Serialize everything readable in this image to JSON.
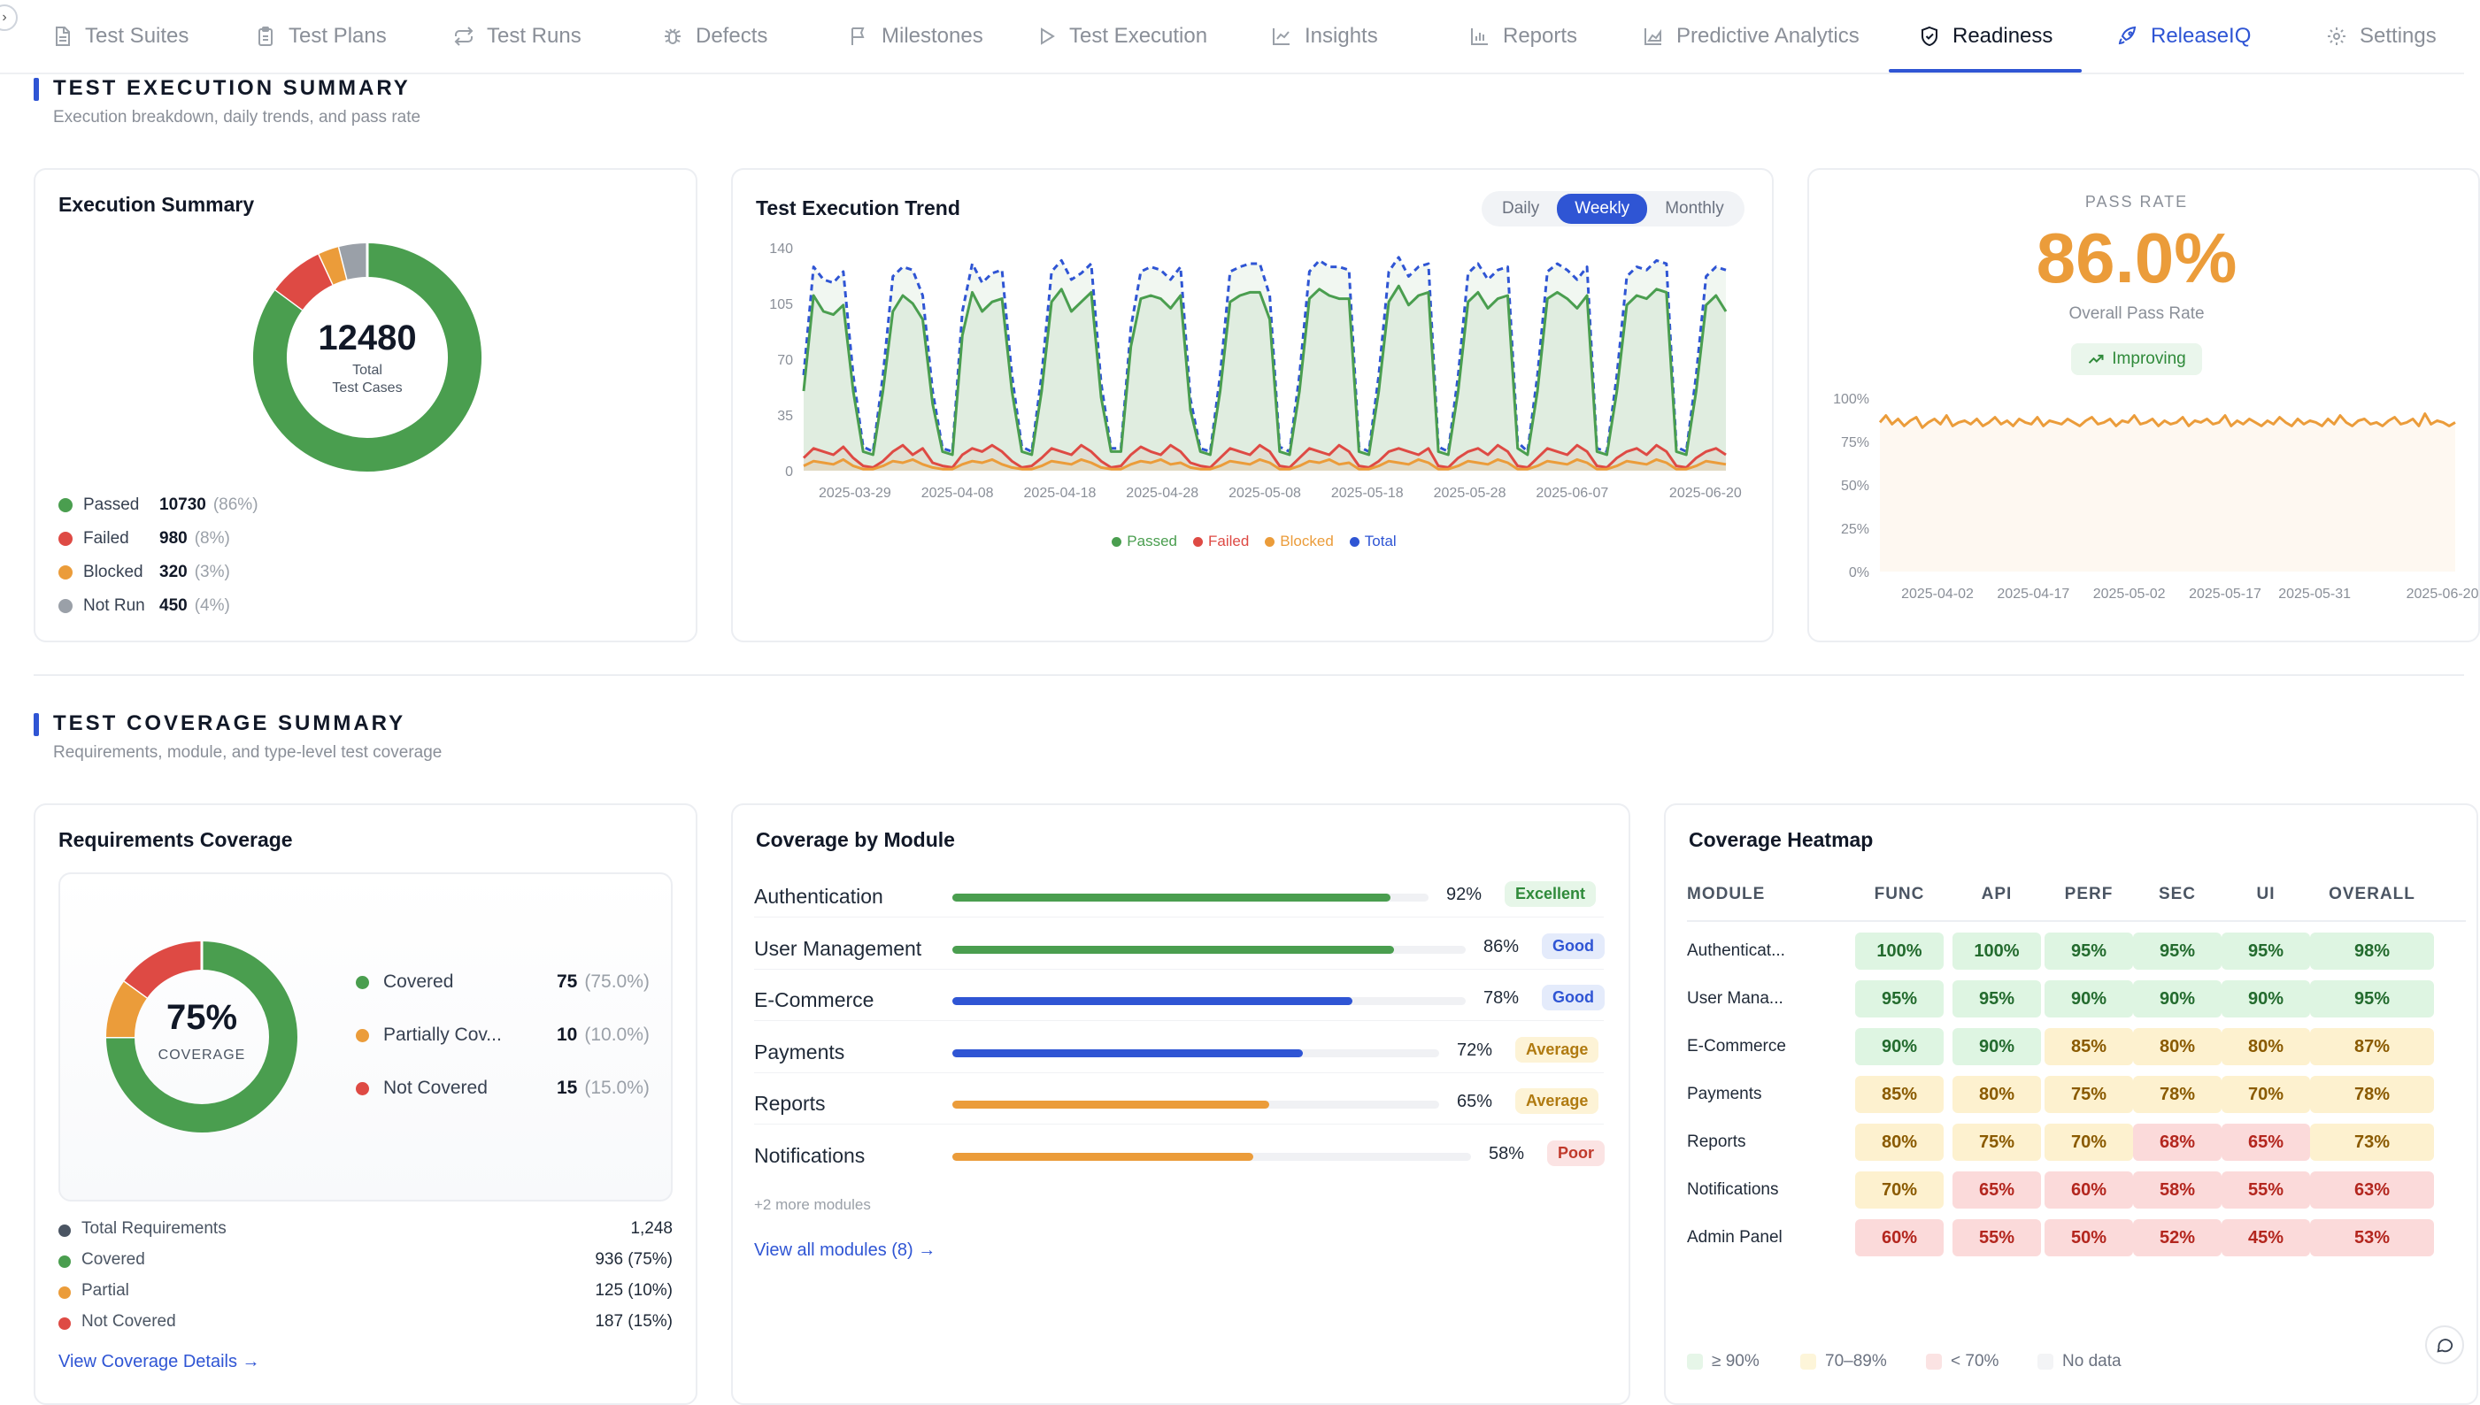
{
  "nav": {
    "toggle": "›",
    "tabs": [
      {
        "label": "Test Suites",
        "icon": "file-icon"
      },
      {
        "label": "Test Plans",
        "icon": "clipboard-icon"
      },
      {
        "label": "Test Runs",
        "icon": "repeat-icon"
      },
      {
        "label": "Defects",
        "icon": "bug-icon"
      },
      {
        "label": "Milestones",
        "icon": "flag-icon"
      },
      {
        "label": "Test Execution",
        "icon": "play-icon"
      },
      {
        "label": "Insights",
        "icon": "line-chart-icon"
      },
      {
        "label": "Reports",
        "icon": "bar-chart-icon"
      },
      {
        "label": "Predictive Analytics",
        "icon": "area-chart-icon"
      },
      {
        "label": "Readiness",
        "icon": "shield-check-icon"
      },
      {
        "label": "ReleaseIQ",
        "icon": "rocket-icon"
      },
      {
        "label": "Settings",
        "icon": "gear-icon"
      }
    ],
    "active": "Readiness"
  },
  "execution_section": {
    "title": "TEST EXECUTION SUMMARY",
    "subtitle": "Execution breakdown, daily trends, and pass rate"
  },
  "execution_summary": {
    "title": "Execution Summary",
    "total": "12480",
    "total_label_1": "Total",
    "total_label_2": "Test Cases",
    "items": [
      {
        "label": "Passed",
        "value": "10730",
        "pct": "(86%)",
        "color": "#4a9e4f",
        "share": 86
      },
      {
        "label": "Failed",
        "value": "980",
        "pct": "(8%)",
        "color": "#de4a44",
        "share": 8
      },
      {
        "label": "Blocked",
        "value": "320",
        "pct": "(3%)",
        "color": "#eb9c3a",
        "share": 3
      },
      {
        "label": "Not Run",
        "value": "450",
        "pct": "(4%)",
        "color": "#9aa0a8",
        "share": 4
      }
    ]
  },
  "trend": {
    "title": "Test Execution Trend",
    "periods": [
      "Daily",
      "Weekly",
      "Monthly"
    ],
    "selected": "Weekly",
    "legend": [
      {
        "label": "Passed",
        "color": "#4a9e4f"
      },
      {
        "label": "Failed",
        "color": "#de4a44"
      },
      {
        "label": "Blocked",
        "color": "#eb9c3a"
      },
      {
        "label": "Total",
        "color": "#2f55d4"
      }
    ]
  },
  "pass_rate": {
    "label": "PASS RATE",
    "value": "86.0%",
    "sub": "Overall Pass Rate",
    "trend": "Improving"
  },
  "coverage_section": {
    "title": "TEST COVERAGE SUMMARY",
    "subtitle": "Requirements, module, and type-level test coverage"
  },
  "requirements": {
    "title": "Requirements Coverage",
    "center_value": "75%",
    "center_label": "COVERAGE",
    "items": [
      {
        "label": "Covered",
        "value": "75",
        "pct": "(75.0%)",
        "color": "#4a9e4f",
        "share": 75
      },
      {
        "label": "Partially Cov...",
        "value": "10",
        "pct": "(10.0%)",
        "color": "#eb9c3a",
        "share": 10
      },
      {
        "label": "Not Covered",
        "value": "15",
        "pct": "(15.0%)",
        "color": "#de4a44",
        "share": 15
      }
    ],
    "stats": [
      {
        "label": "Total Requirements",
        "value": "1,248",
        "color": "#4b5563"
      },
      {
        "label": "Covered",
        "value": "936 (75%)",
        "color": "#4a9e4f"
      },
      {
        "label": "Partial",
        "value": "125 (10%)",
        "color": "#eb9c3a"
      },
      {
        "label": "Not Covered",
        "value": "187 (15%)",
        "color": "#de4a44"
      }
    ],
    "link": "View Coverage Details →"
  },
  "modules": {
    "title": "Coverage by Module",
    "rows": [
      {
        "name": "Authentication",
        "pct": "92%",
        "value": 92,
        "badge": "Excellent",
        "color": "#4a9e4f",
        "badge_bg": "#e6f6e8",
        "badge_fg": "#2f8a3a"
      },
      {
        "name": "User Management",
        "pct": "86%",
        "value": 86,
        "badge": "Good",
        "color": "#4a9e4f",
        "badge_bg": "#e4ebfb",
        "badge_fg": "#2f55d4"
      },
      {
        "name": "E-Commerce",
        "pct": "78%",
        "value": 78,
        "badge": "Good",
        "color": "#2f55d4",
        "badge_bg": "#e4ebfb",
        "badge_fg": "#2f55d4"
      },
      {
        "name": "Payments",
        "pct": "72%",
        "value": 72,
        "badge": "Average",
        "color": "#2f55d4",
        "badge_bg": "#fdf3d6",
        "badge_fg": "#b07a10"
      },
      {
        "name": "Reports",
        "pct": "65%",
        "value": 65,
        "badge": "Average",
        "color": "#eb9c3a",
        "badge_bg": "#fdf3d6",
        "badge_fg": "#b07a10"
      },
      {
        "name": "Notifications",
        "pct": "58%",
        "value": 58,
        "badge": "Poor",
        "color": "#eb9c3a",
        "badge_bg": "#fbe3e3",
        "badge_fg": "#c0392b"
      }
    ],
    "more": "+2 more modules",
    "link": "View all modules (8) →"
  },
  "heatmap": {
    "title": "Coverage Heatmap",
    "columns": [
      "MODULE",
      "FUNC",
      "API",
      "PERF",
      "SEC",
      "UI",
      "OVERALL"
    ],
    "rows": [
      {
        "module": "Authenticat...",
        "values": [
          "100%",
          "100%",
          "95%",
          "95%",
          "95%",
          "98%"
        ]
      },
      {
        "module": "User Mana...",
        "values": [
          "95%",
          "95%",
          "90%",
          "90%",
          "90%",
          "95%"
        ]
      },
      {
        "module": "E-Commerce",
        "values": [
          "90%",
          "90%",
          "85%",
          "80%",
          "80%",
          "87%"
        ]
      },
      {
        "module": "Payments",
        "values": [
          "85%",
          "80%",
          "75%",
          "78%",
          "70%",
          "78%"
        ]
      },
      {
        "module": "Reports",
        "values": [
          "80%",
          "75%",
          "70%",
          "68%",
          "65%",
          "73%"
        ]
      },
      {
        "module": "Notifications",
        "values": [
          "70%",
          "65%",
          "60%",
          "58%",
          "55%",
          "63%"
        ]
      },
      {
        "module": "Admin Panel",
        "values": [
          "60%",
          "55%",
          "50%",
          "52%",
          "45%",
          "53%"
        ]
      }
    ],
    "legend": [
      {
        "label": "≥ 90%",
        "color": "#e6f6e8"
      },
      {
        "label": "70–89%",
        "color": "#fdf5d9"
      },
      {
        "label": "< 70%",
        "color": "#fbe3e3"
      },
      {
        "label": "No data",
        "color": "#f3f4f6"
      }
    ]
  },
  "chart_data": [
    {
      "type": "line",
      "title": "Test Execution Trend",
      "x_ticks": [
        "2025-03-29",
        "2025-04-08",
        "2025-04-18",
        "2025-04-28",
        "2025-05-08",
        "2025-05-18",
        "2025-05-28",
        "2025-06-07",
        "2025-06-20"
      ],
      "y_ticks": [
        "0",
        "35",
        "70",
        "105",
        "140"
      ],
      "ylim": [
        0,
        140
      ],
      "x_range": [
        "2025-03-24",
        "2025-06-22"
      ],
      "series": [
        {
          "name": "Total",
          "values": [
            60,
            128,
            120,
            118,
            125,
            60,
            15,
            12,
            60,
            122,
            128,
            126,
            110,
            50,
            14,
            12,
            100,
            130,
            118,
            124,
            126,
            60,
            15,
            12,
            60,
            125,
            132,
            120,
            124,
            130,
            55,
            14,
            14,
            90,
            125,
            128,
            126,
            120,
            128,
            45,
            14,
            12,
            60,
            125,
            128,
            130,
            130,
            110,
            15,
            12,
            60,
            125,
            132,
            128,
            128,
            126,
            15,
            12,
            60,
            125,
            134,
            122,
            128,
            130,
            15,
            12,
            60,
            124,
            130,
            120,
            126,
            128,
            18,
            12,
            60,
            125,
            130,
            126,
            120,
            128,
            14,
            12,
            60,
            122,
            128,
            126,
            132,
            130,
            15,
            12,
            60,
            122,
            128,
            126
          ]
        },
        {
          "name": "Passed",
          "values": [
            50,
            110,
            100,
            98,
            104,
            50,
            12,
            10,
            50,
            100,
            110,
            105,
            95,
            42,
            12,
            10,
            85,
            112,
            100,
            106,
            108,
            50,
            12,
            10,
            50,
            106,
            114,
            100,
            106,
            112,
            46,
            12,
            12,
            78,
            108,
            110,
            108,
            102,
            110,
            38,
            12,
            10,
            50,
            106,
            110,
            112,
            112,
            95,
            12,
            10,
            50,
            108,
            114,
            110,
            108,
            108,
            12,
            10,
            50,
            106,
            116,
            104,
            110,
            112,
            12,
            10,
            50,
            106,
            112,
            102,
            108,
            110,
            14,
            10,
            50,
            108,
            112,
            108,
            102,
            110,
            12,
            10,
            50,
            104,
            110,
            108,
            114,
            112,
            12,
            10,
            50,
            104,
            110,
            100
          ]
        },
        {
          "name": "Failed",
          "values": [
            8,
            14,
            12,
            10,
            15,
            8,
            3,
            2,
            6,
            12,
            16,
            10,
            14,
            5,
            3,
            2,
            10,
            14,
            12,
            16,
            12,
            6,
            2,
            3,
            8,
            14,
            12,
            10,
            16,
            12,
            6,
            2,
            3,
            10,
            15,
            12,
            10,
            16,
            12,
            5,
            3,
            2,
            8,
            14,
            12,
            10,
            16,
            12,
            3,
            2,
            8,
            14,
            12,
            10,
            16,
            12,
            3,
            2,
            6,
            12,
            14,
            12,
            10,
            14,
            3,
            2,
            8,
            12,
            14,
            10,
            16,
            12,
            3,
            2,
            8,
            14,
            12,
            10,
            16,
            12,
            3,
            2,
            8,
            12,
            14,
            10,
            16,
            12,
            3,
            2,
            8,
            12,
            14,
            10
          ]
        },
        {
          "name": "Blocked",
          "values": [
            3,
            6,
            5,
            4,
            7,
            3,
            1,
            1,
            3,
            6,
            5,
            7,
            4,
            2,
            1,
            1,
            4,
            6,
            5,
            7,
            4,
            2,
            1,
            1,
            3,
            6,
            5,
            4,
            7,
            5,
            2,
            1,
            1,
            4,
            6,
            5,
            7,
            4,
            5,
            2,
            1,
            1,
            3,
            6,
            5,
            4,
            7,
            5,
            1,
            1,
            3,
            6,
            5,
            7,
            4,
            5,
            1,
            1,
            3,
            6,
            5,
            4,
            7,
            5,
            1,
            1,
            3,
            6,
            5,
            4,
            7,
            5,
            1,
            1,
            3,
            6,
            5,
            4,
            7,
            5,
            1,
            1,
            3,
            6,
            5,
            4,
            7,
            5,
            1,
            1,
            3,
            6,
            5,
            4
          ]
        }
      ]
    },
    {
      "type": "area",
      "title": "Pass Rate",
      "x_ticks": [
        "2025-04-02",
        "2025-04-17",
        "2025-05-02",
        "2025-05-17",
        "2025-05-31",
        "2025-06-20"
      ],
      "y_ticks": [
        "0%",
        "25%",
        "50%",
        "75%",
        "100%"
      ],
      "ylim": [
        0,
        100
      ],
      "x_range": [
        "2025-03-24",
        "2025-06-22"
      ],
      "series": [
        {
          "name": "Pass Rate",
          "values": [
            86,
            90,
            85,
            88,
            84,
            87,
            89,
            83,
            86,
            88,
            85,
            90,
            84,
            86,
            87,
            85,
            88,
            84,
            86,
            89,
            85,
            87,
            84,
            88,
            86,
            85,
            89,
            84,
            87,
            86,
            85,
            88,
            86,
            84,
            87,
            89,
            85,
            86,
            88,
            84,
            87,
            86,
            90,
            85,
            86,
            88,
            84,
            87,
            85,
            86,
            89,
            84,
            87,
            86,
            88,
            85,
            86,
            90,
            84,
            87,
            85,
            88,
            86,
            84,
            87,
            85,
            89,
            86,
            84,
            88,
            85,
            87,
            86,
            84,
            88,
            85,
            90,
            86,
            84,
            87,
            88,
            85,
            86,
            84,
            87,
            89,
            85,
            86,
            88,
            84,
            91,
            85,
            87,
            86,
            84,
            86
          ]
        }
      ]
    }
  ]
}
